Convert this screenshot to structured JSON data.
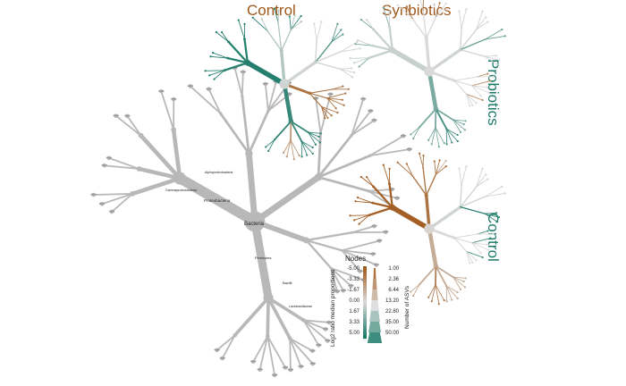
{
  "headers": {
    "col_control": "Control",
    "col_synbiotics": "Synbiotics",
    "row_probiotics": "Probiotics",
    "row_control": "Control"
  },
  "tree_labels": {
    "root": "Bacteria",
    "proteobacteria": "Proteobacteria",
    "firmicutes": "Firmicutes",
    "bacilli": "Bacilli",
    "lactobacillaceae": "Lactobacillaceae",
    "gammaproteobacteria": "Gammaproteobacteria",
    "alphaproteobacteria": "Alphaproteobacteria"
  },
  "legend": {
    "title": "Nodes",
    "color_axis_title": "Log2 ratio median proportions",
    "size_axis_title": "Number of ASVs",
    "color_ticks": [
      "-5.00",
      "-3.33",
      "-1.67",
      "0.00",
      "1.67",
      "3.33",
      "5.00"
    ],
    "size_ticks": [
      "1.00",
      "2.36",
      "6.44",
      "13.20",
      "22.80",
      "35.00",
      "50.00"
    ]
  },
  "colors": {
    "negative": "#a0591b",
    "neutral": "#d9d9d9",
    "positive": "#1c7a68",
    "reference_tree": "#b8b8b8"
  }
}
